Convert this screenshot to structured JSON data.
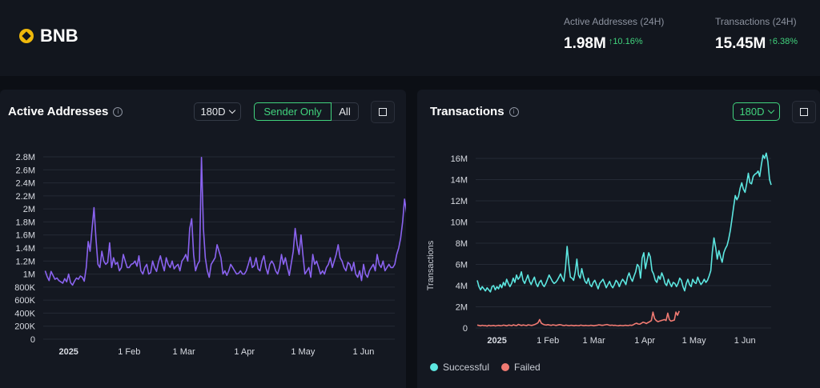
{
  "header": {
    "brand": "BNB",
    "stats": [
      {
        "label": "Active Addresses (24H)",
        "value": "1.98M",
        "change": "10.16%"
      },
      {
        "label": "Transactions (24H)",
        "value": "15.45M",
        "change": "6.38%"
      }
    ]
  },
  "left_panel": {
    "title": "Active Addresses",
    "range": "180D",
    "toggle_selected": "Sender Only",
    "toggle_other": "All"
  },
  "right_panel": {
    "title": "Transactions",
    "range": "180D",
    "legend": [
      {
        "label": "Successful",
        "color": "#5ce6e0"
      },
      {
        "label": "Failed",
        "color": "#f07a72"
      }
    ]
  },
  "colors": {
    "active": "#8a63f0",
    "successful": "#5ce6e0",
    "failed": "#f07a72",
    "up": "#41d37d"
  },
  "chart_data": [
    {
      "type": "line",
      "title": "Active Addresses",
      "ylabel": "",
      "ylim": [
        0,
        2800000
      ],
      "yticks": [
        0,
        200000,
        400000,
        600000,
        800000,
        1000000,
        1200000,
        1400000,
        1600000,
        1800000,
        2000000,
        2200000,
        2400000,
        2600000,
        2800000
      ],
      "ytick_labels": [
        "0",
        "200K",
        "400K",
        "600K",
        "800K",
        "1M",
        "1.2M",
        "1.4M",
        "1.6M",
        "1.8M",
        "2M",
        "2.2M",
        "2.4M",
        "2.6M",
        "2.8M"
      ],
      "xlim": [
        "2024-12-19",
        "2025-06-17"
      ],
      "xticks": [
        "2025-01-01",
        "2025-02-01",
        "2025-03-01",
        "2025-04-01",
        "2025-05-01",
        "2025-06-01"
      ],
      "xtick_labels": [
        "2025",
        "1 Feb",
        "1 Mar",
        "1 Apr",
        "1 May",
        "1 Jun"
      ],
      "grid": true,
      "series": [
        {
          "x_start": "2024-12-20",
          "x_step_days": 1,
          "values": [
            1050000,
            960000,
            900000,
            1040000,
            980000,
            920000,
            940000,
            900000,
            880000,
            860000,
            930000,
            880000,
            1000000,
            870000,
            830000,
            890000,
            940000,
            920000,
            970000,
            950000,
            890000,
            1100000,
            1500000,
            1350000,
            1700000,
            2020000,
            1550000,
            1150000,
            1100000,
            1350000,
            1200000,
            1150000,
            1180000,
            1480000,
            1100000,
            1250000,
            1150000,
            1180000,
            1050000,
            1100000,
            1300000,
            1200000,
            1100000,
            1100000,
            1150000,
            1160000,
            1200000,
            1120000,
            1280000,
            1050000,
            1000000,
            1100000,
            1150000,
            1000000,
            1020000,
            1200000,
            1100000,
            1040000,
            1180000,
            1280000,
            1150000,
            1050000,
            1250000,
            1150000,
            1100000,
            1200000,
            1080000,
            1120000,
            1150000,
            1050000,
            1200000,
            1240000,
            1300000,
            1200000,
            1700000,
            1850000,
            1300000,
            1050000,
            1150000,
            1200000,
            2790000,
            1700000,
            1250000,
            1050000,
            950000,
            1150000,
            1200000,
            1250000,
            1450000,
            1350000,
            1250000,
            1000000,
            1050000,
            980000,
            1050000,
            1150000,
            1100000,
            1050000,
            1000000,
            1010000,
            1050000,
            1000000,
            1000000,
            1050000,
            1150000,
            1260000,
            1100000,
            1130000,
            1250000,
            1080000,
            1050000,
            1200000,
            1280000,
            1100000,
            1000000,
            1150000,
            1200000,
            1150000,
            1050000,
            1000000,
            1100000,
            1300000,
            1150000,
            1250000,
            1100000,
            980000,
            1160000,
            1350000,
            1700000,
            1450000,
            1300000,
            1600000,
            1280000,
            1000000,
            1050000,
            1100000,
            950000,
            1300000,
            1150000,
            1200000,
            1100000,
            1000000,
            1050000,
            1000000,
            1100000,
            1150000,
            1250000,
            1100000,
            1200000,
            1300000,
            1450000,
            1250000,
            1200000,
            1100000,
            1050000,
            1180000,
            1150000,
            1050000,
            1180000,
            1000000,
            950000,
            1050000,
            900000,
            1150000,
            1000000,
            950000,
            1050000,
            1100000,
            1150000,
            1050000,
            1300000,
            1150000,
            1100000,
            1200000,
            1050000,
            1100000,
            1150000,
            1100000,
            1100000,
            1150000,
            1300000,
            1400000,
            1550000,
            1800000,
            2150000,
            1950000,
            1700000,
            1600000,
            1750000,
            1950000,
            1700000,
            1600000,
            1550000,
            1700000,
            1550000,
            1450000,
            1550000,
            1700000,
            1850000,
            1950000,
            1800000,
            1850000,
            1950000,
            1700000,
            1750000,
            1800000,
            1950000,
            1650000,
            1600000,
            1750000,
            1550000,
            1500000,
            1700000,
            1650000,
            1600000,
            1800000,
            1950000,
            1850000,
            1650000,
            1800000,
            2000000,
            1850000,
            1950000,
            1800000,
            2030000
          ]
        }
      ]
    },
    {
      "type": "line",
      "title": "Transactions",
      "ylabel": "Transactions",
      "ylim": [
        0,
        16000000
      ],
      "yticks": [
        0,
        2000000,
        4000000,
        6000000,
        8000000,
        10000000,
        12000000,
        14000000,
        16000000
      ],
      "ytick_labels": [
        "0",
        "2M",
        "4M",
        "6M",
        "8M",
        "10M",
        "12M",
        "14M",
        "16M"
      ],
      "xlim": [
        "2024-12-19",
        "2025-06-17"
      ],
      "xticks": [
        "2025-01-01",
        "2025-02-01",
        "2025-03-01",
        "2025-04-01",
        "2025-05-01",
        "2025-06-01"
      ],
      "xtick_labels": [
        "2025",
        "1 Feb",
        "1 Mar",
        "1 Apr",
        "1 May",
        "1 Jun"
      ],
      "grid": true,
      "legend": "bottom-left",
      "series": [
        {
          "name": "Successful",
          "x_start": "2024-12-20",
          "x_step_days": 1,
          "values": [
            4500000,
            3900000,
            3600000,
            3900000,
            3700000,
            3500000,
            3800000,
            3600000,
            3400000,
            3900000,
            4000000,
            3600000,
            3900000,
            3700000,
            4100000,
            3800000,
            4300000,
            4000000,
            4600000,
            4200000,
            3900000,
            4200000,
            4700000,
            4300000,
            5000000,
            4600000,
            4800000,
            5300000,
            4500000,
            4200000,
            4600000,
            5000000,
            4400000,
            4100000,
            4500000,
            4800000,
            4200000,
            3900000,
            4300000,
            4500000,
            4100000,
            3900000,
            4200000,
            4600000,
            5000000,
            4700000,
            4400000,
            4200000,
            4300000,
            4500000,
            4800000,
            5100000,
            4700000,
            4400000,
            5600000,
            7700000,
            6100000,
            4800000,
            4700000,
            4500000,
            5300000,
            6500000,
            5000000,
            4700000,
            5600000,
            4900000,
            4400000,
            4200000,
            4700000,
            4100000,
            3900000,
            4300000,
            4500000,
            4100000,
            3700000,
            4200000,
            4400000,
            4600000,
            4200000,
            3800000,
            4100000,
            4400000,
            4000000,
            3800000,
            4100000,
            4500000,
            4300000,
            3900000,
            4300000,
            4600000,
            4400000,
            4100000,
            4800000,
            5200000,
            4700000,
            4400000,
            4900000,
            5300000,
            6000000,
            5800000,
            4700000,
            6600000,
            7100000,
            5600000,
            6400000,
            7100000,
            6700000,
            5400000,
            5100000,
            4500000,
            4300000,
            4900000,
            4600000,
            5200000,
            4800000,
            4200000,
            4000000,
            4600000,
            4200000,
            3900000,
            4300000,
            4200000,
            3900000,
            4200000,
            4700000,
            4500000,
            3900000,
            3500000,
            4200000,
            4600000,
            4100000,
            3900000,
            4600000,
            4300000,
            4200000,
            4800000,
            4400000,
            4100000,
            4300000,
            4600000,
            4300000,
            4500000,
            4900000,
            5400000,
            7200000,
            8500000,
            7600000,
            6500000,
            7300000,
            6700000,
            6200000,
            7100000,
            7500000,
            7800000,
            8400000,
            9200000,
            10300000,
            11400000,
            12500000,
            12100000,
            12400000,
            13200000,
            13700000,
            13100000,
            12800000,
            13600000,
            14600000,
            13700000,
            13600000,
            14300000,
            14500000,
            14600000,
            14800000,
            14300000,
            15400000,
            16300000,
            16000000,
            16500000,
            15700000,
            14000000,
            13500000
          ],
          "x_end": "2025-06-17"
        },
        {
          "name": "Failed",
          "x_start": "2024-12-20",
          "x_step_days": 1,
          "values": [
            280000,
            240000,
            200000,
            260000,
            220000,
            230000,
            180000,
            260000,
            200000,
            220000,
            240000,
            190000,
            230000,
            250000,
            210000,
            230000,
            270000,
            240000,
            200000,
            280000,
            260000,
            220000,
            300000,
            250000,
            230000,
            340000,
            280000,
            240000,
            290000,
            260000,
            230000,
            300000,
            270000,
            240000,
            280000,
            330000,
            400000,
            500000,
            800000,
            450000,
            360000,
            300000,
            280000,
            320000,
            280000,
            250000,
            300000,
            270000,
            240000,
            280000,
            320000,
            300000,
            250000,
            230000,
            270000,
            240000,
            220000,
            260000,
            240000,
            210000,
            250000,
            230000,
            220000,
            270000,
            240000,
            220000,
            250000,
            230000,
            220000,
            260000,
            240000,
            210000,
            240000,
            260000,
            300000,
            280000,
            250000,
            270000,
            300000,
            330000,
            280000,
            250000,
            270000,
            240000,
            260000,
            230000,
            210000,
            250000,
            230000,
            220000,
            260000,
            240000,
            230000,
            270000,
            250000,
            300000,
            400000,
            450000,
            380000,
            360000,
            450000,
            550000,
            500000,
            420000,
            520000,
            600000,
            700000,
            1500000,
            900000,
            700000,
            600000,
            650000,
            700000,
            750000,
            800000,
            700000,
            1400000,
            800000,
            650000,
            700000,
            750000,
            1500000,
            1200000,
            1600000
          ]
        }
      ]
    }
  ]
}
